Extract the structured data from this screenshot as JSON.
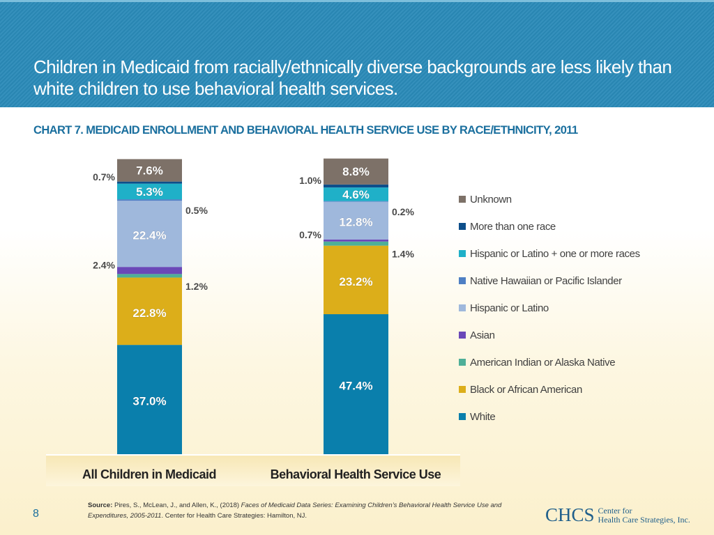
{
  "header": {
    "title": "Children in Medicaid from racially/ethnically diverse backgrounds are less likely than white children to use behavioral health services."
  },
  "chart_title": "CHART 7. MEDICAID ENROLLMENT AND BEHAVIORAL HEALTH SERVICE USE BY RACE/ETHNICITY, 2011",
  "chart_data": {
    "type": "bar",
    "stacked": true,
    "categories": [
      "All Children in Medicaid",
      "Behavioral Health Service Use"
    ],
    "series": [
      {
        "name": "White",
        "color": "#0a7fac",
        "values": [
          37.0,
          47.4
        ],
        "labels": [
          "37.0%",
          "47.4%"
        ]
      },
      {
        "name": "Black or African American",
        "color": "#dcae1a",
        "values": [
          22.8,
          23.2
        ],
        "labels": [
          "22.8%",
          "23.2%"
        ]
      },
      {
        "name": "American Indian or Alaska Native",
        "color": "#4eaf98",
        "values": [
          1.2,
          1.4
        ],
        "labels": [
          "1.2%",
          "1.4%"
        ]
      },
      {
        "name": "Asian",
        "color": "#6a48b8",
        "values": [
          2.4,
          0.7
        ],
        "labels": [
          "2.4%",
          "0.7%"
        ]
      },
      {
        "name": "Hispanic or Latino",
        "color": "#9fb8dc",
        "values": [
          22.4,
          12.8
        ],
        "labels": [
          "22.4%",
          "12.8%"
        ]
      },
      {
        "name": "Native Hawaiian or Pacific Islander",
        "color": "#4e7fc4",
        "values": [
          0.5,
          0.2
        ],
        "labels": [
          "0.5%",
          "0.2%"
        ]
      },
      {
        "name": "Hispanic or Latino + one or more races",
        "color": "#1fb0c8",
        "values": [
          5.3,
          4.6
        ],
        "labels": [
          "5.3%",
          "4.6%"
        ]
      },
      {
        "name": "More than one race",
        "color": "#0d4e8a",
        "values": [
          0.7,
          1.0
        ],
        "labels": [
          "0.7%",
          "1.0%"
        ]
      },
      {
        "name": "Unknown",
        "color": "#7d7168",
        "values": [
          7.6,
          8.8
        ],
        "labels": [
          "7.6%",
          "8.8%"
        ]
      }
    ],
    "ylim": [
      0,
      100
    ],
    "legend_position": "right"
  },
  "source": {
    "label": "Source:",
    "text": "Pires, S., McLean, J., and Allen, K., (2018)",
    "italic": "Faces of Medicaid Data Series: Examining Children’s Behavioral Health Service Use and Expenditures, 2005-2011",
    "text2": ". Center for Health Care Strategies: Hamilton, NJ."
  },
  "page_number": "8",
  "logo": {
    "main": "CHCS",
    "line1": "Center for",
    "line2": "Health Care Strategies, Inc."
  }
}
